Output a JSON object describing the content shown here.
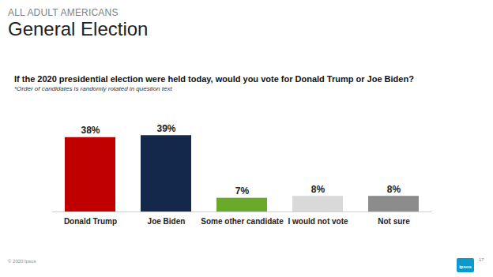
{
  "chart_data": {
    "type": "bar",
    "title": "General Election",
    "subtitle": "If the 2020 presidential election were held today, would you vote for Donald Trump or Joe Biden?",
    "annotations": [
      "ALL ADULT AMERICANS",
      "*Order of candidates is randomly rotated in question text",
      "© 2020 Ipsos",
      "17",
      "ipsos"
    ],
    "categories": [
      "Donald Trump",
      "Joe Biden",
      "Some other candidate",
      "I would not vote",
      "Not sure"
    ],
    "values": [
      38,
      39,
      7,
      8,
      8
    ],
    "value_labels": [
      "38%",
      "39%",
      "7%",
      "8%",
      "8%"
    ],
    "colors": [
      "#c00000",
      "#14284b",
      "#6aaa2a",
      "#d9d9d9",
      "#8c8c8c"
    ],
    "ylim": [
      0,
      50
    ],
    "data_labels": true,
    "tick_labels": "x",
    "grid": false
  }
}
